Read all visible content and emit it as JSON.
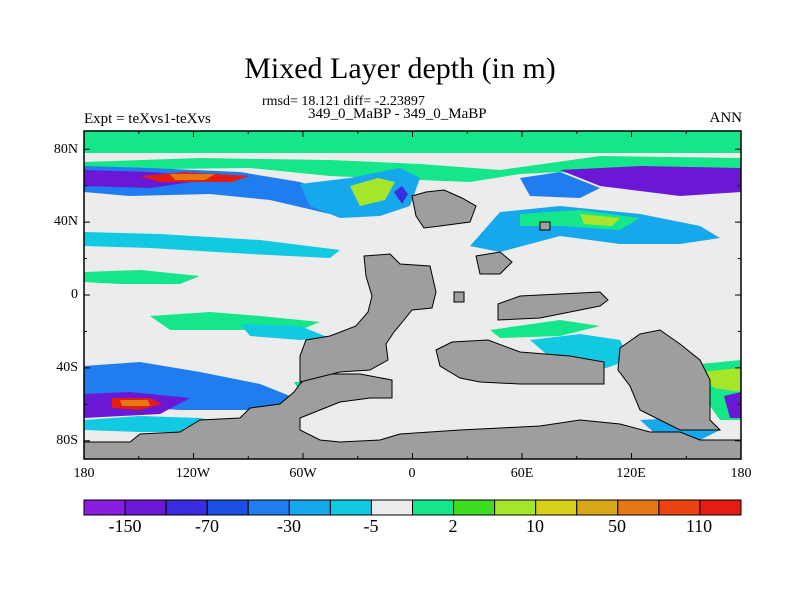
{
  "title": "Mixed Layer depth (in m)",
  "stats_line": "rmsd= 18.121 diff= -2.23897",
  "cases_line": "349_0_MaBP - 349_0_MaBP",
  "experiment_label": "Expt = teXvs1-teXvs",
  "season_label": "ANN",
  "lat_ticks": [
    "80N",
    "40N",
    "0",
    "40S",
    "80S"
  ],
  "lon_ticks": [
    "180",
    "120W",
    "60W",
    "0",
    "60E",
    "120E",
    "180"
  ],
  "colorbar": {
    "labels": [
      "-150",
      "-70",
      "-30",
      "-5",
      "2",
      "10",
      "50",
      "110"
    ],
    "colors": [
      "#8a1ee0",
      "#6a17d6",
      "#3a2ce0",
      "#1c4fe6",
      "#1f7df0",
      "#16a7ec",
      "#12c9e2",
      "#ececec",
      "#16e68a",
      "#3fdd22",
      "#a6e62a",
      "#d7d11c",
      "#d8a818",
      "#e57814",
      "#ea4410",
      "#e41c12"
    ]
  },
  "colors": {
    "land": "#9e9e9e",
    "ocean_neutral": "#ececec"
  }
}
